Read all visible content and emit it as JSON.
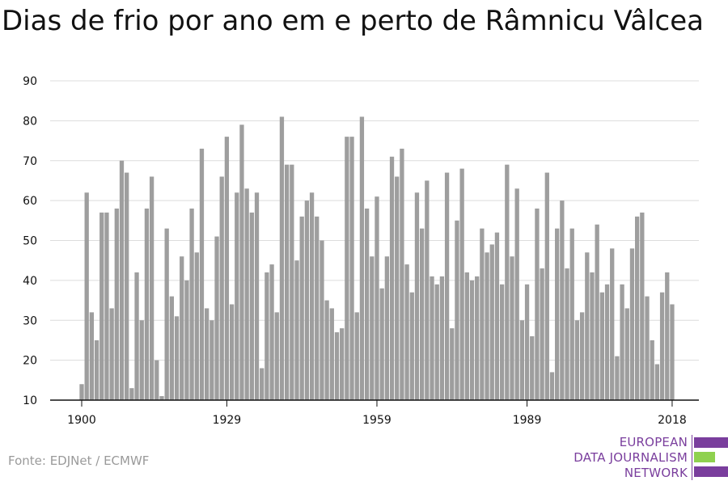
{
  "title": "Dias de frio por ano em e perto de Râmnicu Vâlcea",
  "source": "Fonte: EDJNet / ECMWF",
  "logo": {
    "line1": "EUROPEAN",
    "line2": "DATA JOURNALISM",
    "line3": "NETWORK",
    "colors": {
      "purple": "#7a3e9d",
      "green": "#8fd14f"
    }
  },
  "colors": {
    "bar": "#9e9e9e",
    "grid": "#dcdcdc",
    "axis": "#111111",
    "text": "#111111"
  },
  "chart_data": {
    "type": "bar",
    "title": "Dias de frio por ano em e perto de Râmnicu Vâlcea",
    "xlabel": "",
    "ylabel": "",
    "ylim": [
      10,
      90
    ],
    "yticks": [
      10,
      20,
      30,
      40,
      50,
      60,
      70,
      80,
      90
    ],
    "xticks": [
      1900,
      1929,
      1959,
      1989,
      2018
    ],
    "grid": true,
    "x_start": 1900,
    "x_end": 2018,
    "values": [
      14,
      62,
      32,
      25,
      57,
      57,
      33,
      58,
      70,
      67,
      13,
      42,
      30,
      58,
      66,
      20,
      11,
      53,
      36,
      31,
      46,
      40,
      58,
      47,
      73,
      33,
      30,
      51,
      66,
      76,
      34,
      62,
      79,
      63,
      57,
      62,
      18,
      42,
      44,
      32,
      81,
      69,
      69,
      45,
      56,
      60,
      62,
      56,
      50,
      35,
      33,
      27,
      28,
      76,
      76,
      32,
      81,
      58,
      46,
      61,
      38,
      46,
      71,
      66,
      73,
      44,
      37,
      62,
      53,
      65,
      41,
      39,
      41,
      67,
      28,
      55,
      68,
      42,
      40,
      41,
      53,
      47,
      49,
      52,
      39,
      69,
      46,
      63,
      30,
      39,
      26,
      58,
      43,
      67,
      17,
      53,
      60,
      43,
      53,
      30,
      32,
      47,
      42,
      54,
      37,
      39,
      48,
      21,
      39,
      33,
      48,
      56,
      57,
      36,
      25,
      19,
      37,
      42,
      34
    ]
  }
}
